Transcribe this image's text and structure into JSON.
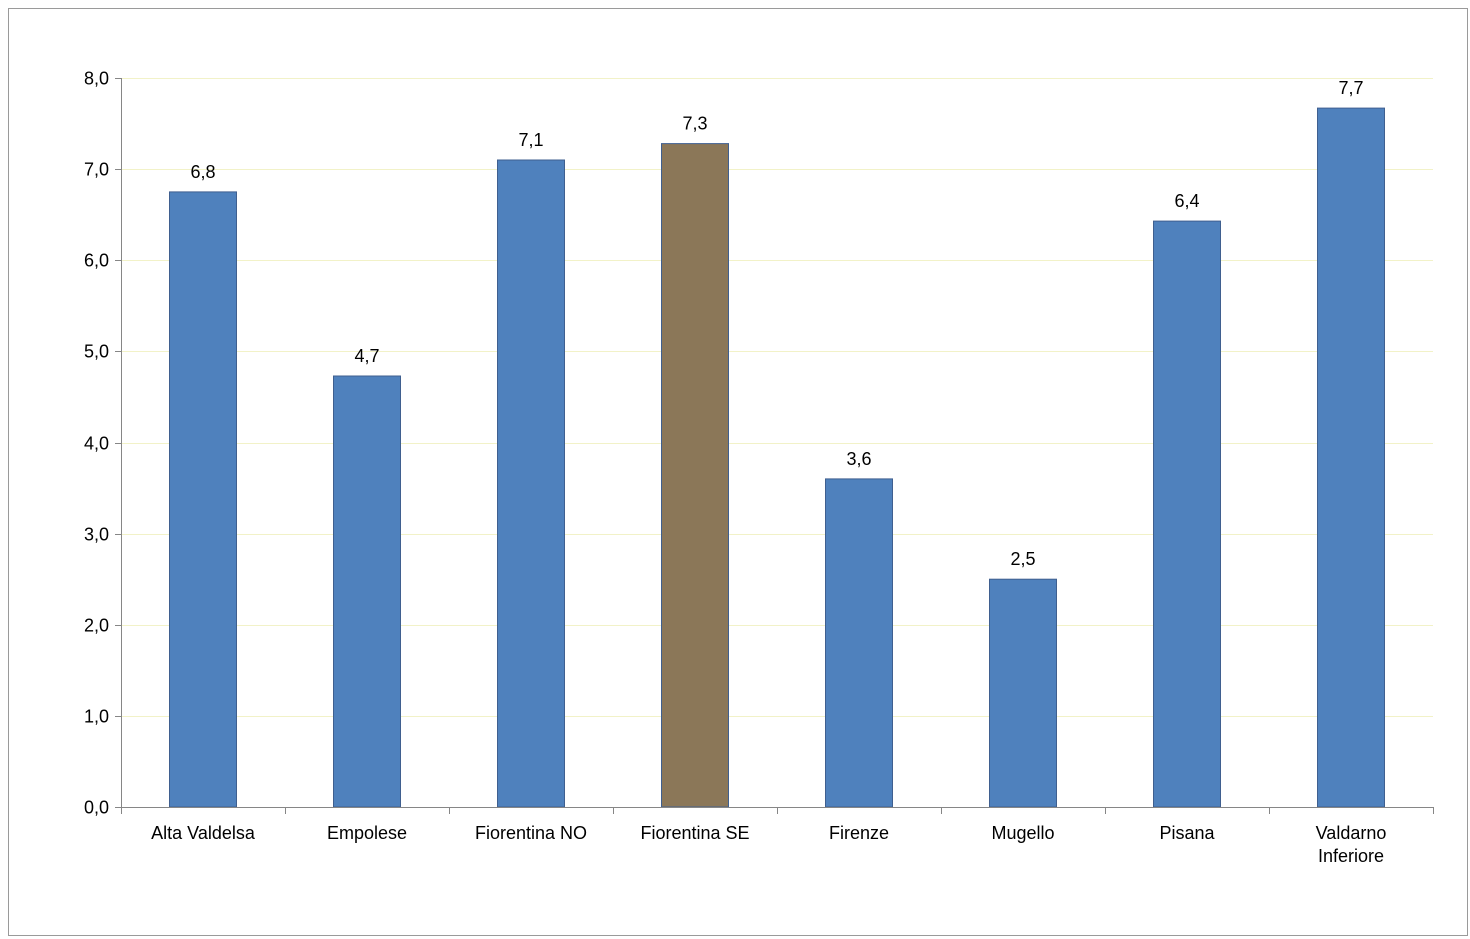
{
  "chart_data": {
    "type": "bar",
    "categories": [
      [
        "Alta Valdelsa"
      ],
      [
        "Empolese"
      ],
      [
        "Fiorentina NO"
      ],
      [
        "Fiorentina SE"
      ],
      [
        "Firenze"
      ],
      [
        "Mugello"
      ],
      [
        "Pisana"
      ],
      [
        "Valdarno",
        "Inferiore"
      ]
    ],
    "values": [
      6.75,
      4.73,
      7.1,
      7.28,
      3.6,
      2.5,
      6.43,
      7.67
    ],
    "data_labels": [
      "6,8",
      "4,7",
      "7,1",
      "7,3",
      "3,6",
      "2,5",
      "6,4",
      "7,7"
    ],
    "bar_colors": [
      "#4f81bd",
      "#4f81bd",
      "#4f81bd",
      "#8b7758",
      "#4f81bd",
      "#4f81bd",
      "#4f81bd",
      "#4f81bd"
    ],
    "ylim": [
      0,
      8
    ],
    "yticks": [
      0,
      1,
      2,
      3,
      4,
      5,
      6,
      7,
      8
    ],
    "ytick_labels": [
      "0,0",
      "1,0",
      "2,0",
      "3,0",
      "4,0",
      "5,0",
      "6,0",
      "7,0",
      "8,0"
    ],
    "grid": true,
    "grid_color": "#f2f2c8",
    "title": "",
    "xlabel": "",
    "ylabel": ""
  }
}
